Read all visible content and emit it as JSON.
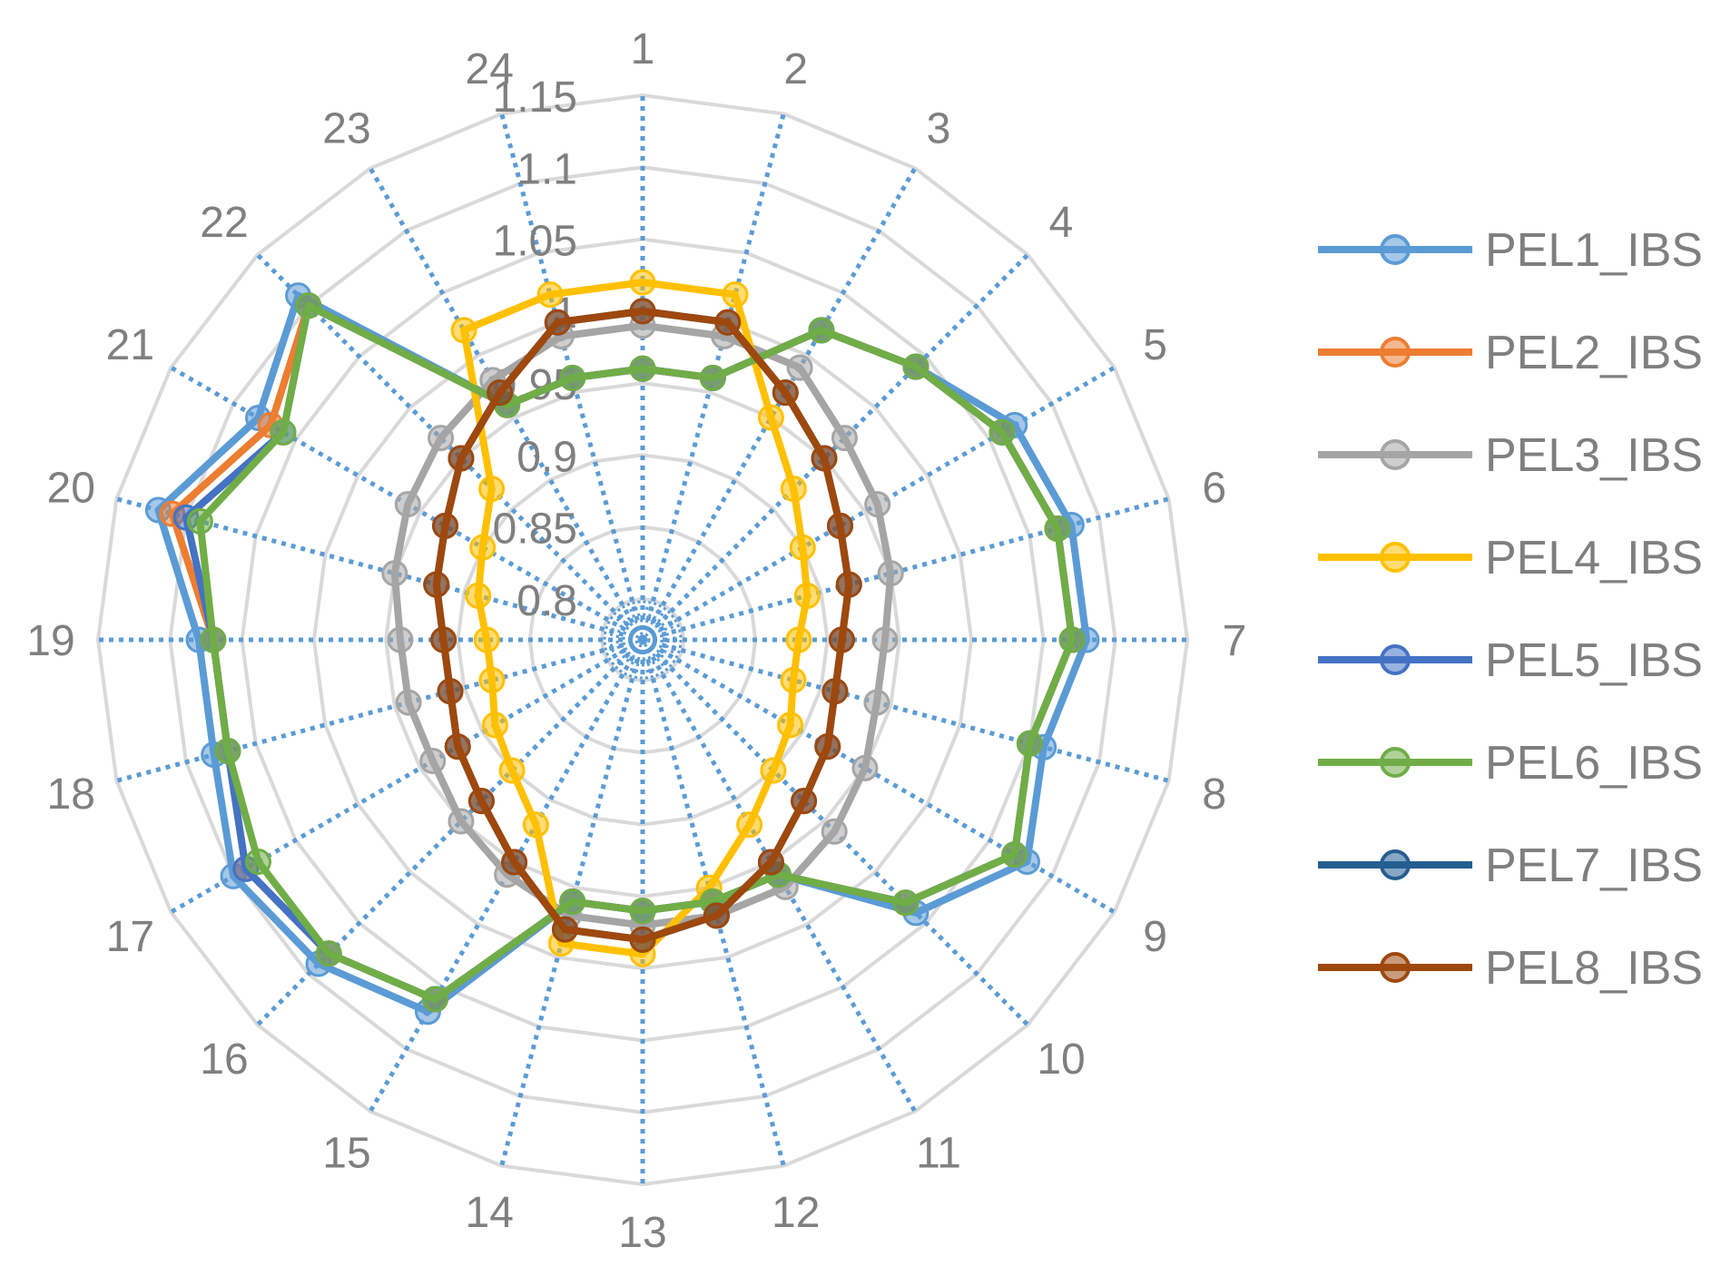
{
  "chart_data": {
    "type": "radar",
    "categories": [
      "1",
      "2",
      "3",
      "4",
      "5",
      "6",
      "7",
      "8",
      "9",
      "10",
      "11",
      "12",
      "13",
      "14",
      "15",
      "16",
      "17",
      "18",
      "19",
      "20",
      "21",
      "22",
      "23",
      "24"
    ],
    "r_ticks": [
      "0.8",
      "0.85",
      "0.9",
      "0.95",
      "1",
      "1.05",
      "1.1",
      "1.15"
    ],
    "rlim": [
      0.8,
      1.15
    ],
    "legend_position": "right",
    "series": [
      {
        "name": "PEL1_IBS",
        "color": "#5b9bd5",
        "values": [
          0.96,
          0.96,
          1.02,
          1.04,
          1.07,
          1.08,
          1.08,
          1.06,
          1.08,
          1.04,
          0.96,
          0.96,
          0.96,
          0.96,
          1.07,
          1.09,
          1.1,
          1.08,
          1.08,
          1.12,
          1.08,
          1.11,
          0.96,
          0.96
        ]
      },
      {
        "name": "PEL2_IBS",
        "color": "#ed7d31",
        "values": [
          0.96,
          0.96,
          1.02,
          1.04,
          1.06,
          1.07,
          1.07,
          1.05,
          1.07,
          1.03,
          0.96,
          0.96,
          0.96,
          0.96,
          1.06,
          1.08,
          1.09,
          1.07,
          1.07,
          1.11,
          1.07,
          1.1,
          0.96,
          0.96
        ]
      },
      {
        "name": "PEL3_IBS",
        "color": "#a5a5a5",
        "values": [
          0.99,
          0.99,
          0.99,
          0.97,
          0.96,
          0.95,
          0.94,
          0.94,
          0.95,
          0.96,
          0.97,
          0.97,
          0.97,
          0.97,
          0.96,
          0.95,
          0.94,
          0.94,
          0.94,
          0.95,
          0.96,
          0.97,
          0.98,
          0.99
        ]
      },
      {
        "name": "PEL4_IBS",
        "color": "#ffc000",
        "values": [
          1.02,
          1.02,
          0.95,
          0.92,
          0.9,
          0.89,
          0.88,
          0.88,
          0.89,
          0.9,
          0.92,
          0.95,
          0.99,
          0.99,
          0.92,
          0.9,
          0.89,
          0.88,
          0.88,
          0.89,
          0.9,
          0.92,
          1.02,
          1.02
        ]
      },
      {
        "name": "PEL5_IBS",
        "color": "#4472c4",
        "values": [
          0.96,
          0.96,
          1.02,
          1.04,
          1.06,
          1.07,
          1.07,
          1.05,
          1.07,
          1.03,
          0.96,
          0.96,
          0.96,
          0.96,
          1.06,
          1.08,
          1.09,
          1.07,
          1.07,
          1.1,
          1.06,
          1.1,
          0.96,
          0.96
        ]
      },
      {
        "name": "PEL6_IBS",
        "color": "#70ad47",
        "values": [
          0.96,
          0.96,
          1.02,
          1.04,
          1.06,
          1.07,
          1.07,
          1.05,
          1.07,
          1.03,
          0.96,
          0.96,
          0.96,
          0.96,
          1.06,
          1.08,
          1.08,
          1.07,
          1.07,
          1.09,
          1.06,
          1.1,
          0.96,
          0.96
        ]
      },
      {
        "name": "PEL7_IBS",
        "color": "#255e91",
        "values": [
          1.0,
          1.0,
          0.97,
          0.95,
          0.93,
          0.92,
          0.91,
          0.91,
          0.92,
          0.93,
          0.95,
          0.97,
          0.98,
          0.98,
          0.95,
          0.93,
          0.92,
          0.91,
          0.91,
          0.92,
          0.93,
          0.95,
          0.97,
          1.0
        ]
      },
      {
        "name": "PEL8_IBS",
        "color": "#9e480e",
        "values": [
          1.0,
          1.0,
          0.97,
          0.95,
          0.93,
          0.92,
          0.91,
          0.91,
          0.92,
          0.93,
          0.95,
          0.97,
          0.98,
          0.98,
          0.95,
          0.93,
          0.92,
          0.91,
          0.91,
          0.92,
          0.93,
          0.95,
          0.97,
          1.0
        ]
      }
    ]
  }
}
